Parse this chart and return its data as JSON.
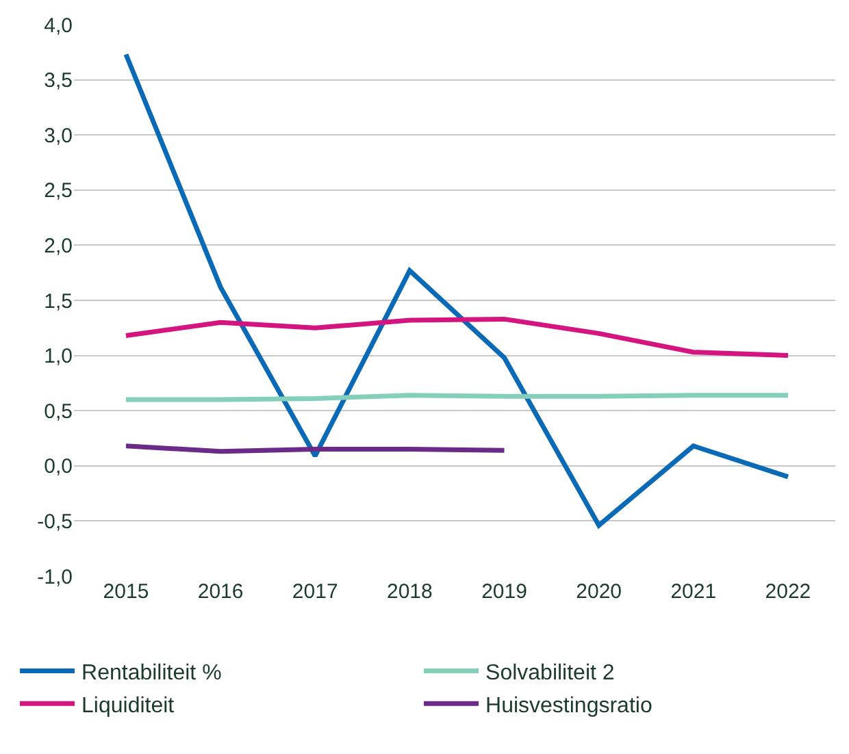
{
  "chart_data": {
    "type": "line",
    "categories": [
      "2015",
      "2016",
      "2017",
      "2018",
      "2019",
      "2020",
      "2021",
      "2022"
    ],
    "series": [
      {
        "name": "Rentabiliteit %",
        "color": "#0a6ab5",
        "values": [
          3.73,
          1.62,
          0.09,
          1.77,
          0.98,
          -0.54,
          0.18,
          -0.1
        ]
      },
      {
        "name": "Solvabiliteit 2",
        "color": "#84cfbb",
        "values": [
          0.6,
          0.6,
          0.61,
          0.64,
          0.63,
          0.63,
          0.64,
          0.64
        ]
      },
      {
        "name": "Liquiditeit",
        "color": "#d4157f",
        "values": [
          1.18,
          1.3,
          1.25,
          1.32,
          1.33,
          1.2,
          1.03,
          1.0
        ]
      },
      {
        "name": "Huisvestingsratio",
        "color": "#6b2a87",
        "values": [
          0.18,
          0.13,
          0.15,
          0.15,
          0.14,
          null,
          null,
          null
        ]
      }
    ],
    "ylim": [
      -1.0,
      4.0
    ],
    "yticks": [
      {
        "value": -1.0,
        "label": "-1,0"
      },
      {
        "value": -0.5,
        "label": "-0,5"
      },
      {
        "value": 0.0,
        "label": "0,0"
      },
      {
        "value": 0.5,
        "label": "0,5"
      },
      {
        "value": 1.0,
        "label": "1,0"
      },
      {
        "value": 1.5,
        "label": "1,5"
      },
      {
        "value": 2.0,
        "label": "2,0"
      },
      {
        "value": 2.5,
        "label": "2,5"
      },
      {
        "value": 3.0,
        "label": "3,0"
      },
      {
        "value": 3.5,
        "label": "3,5"
      },
      {
        "value": 4.0,
        "label": "4,0"
      }
    ],
    "grid": "y",
    "legend": "bottom",
    "marker": "none",
    "line_style": "solid"
  }
}
